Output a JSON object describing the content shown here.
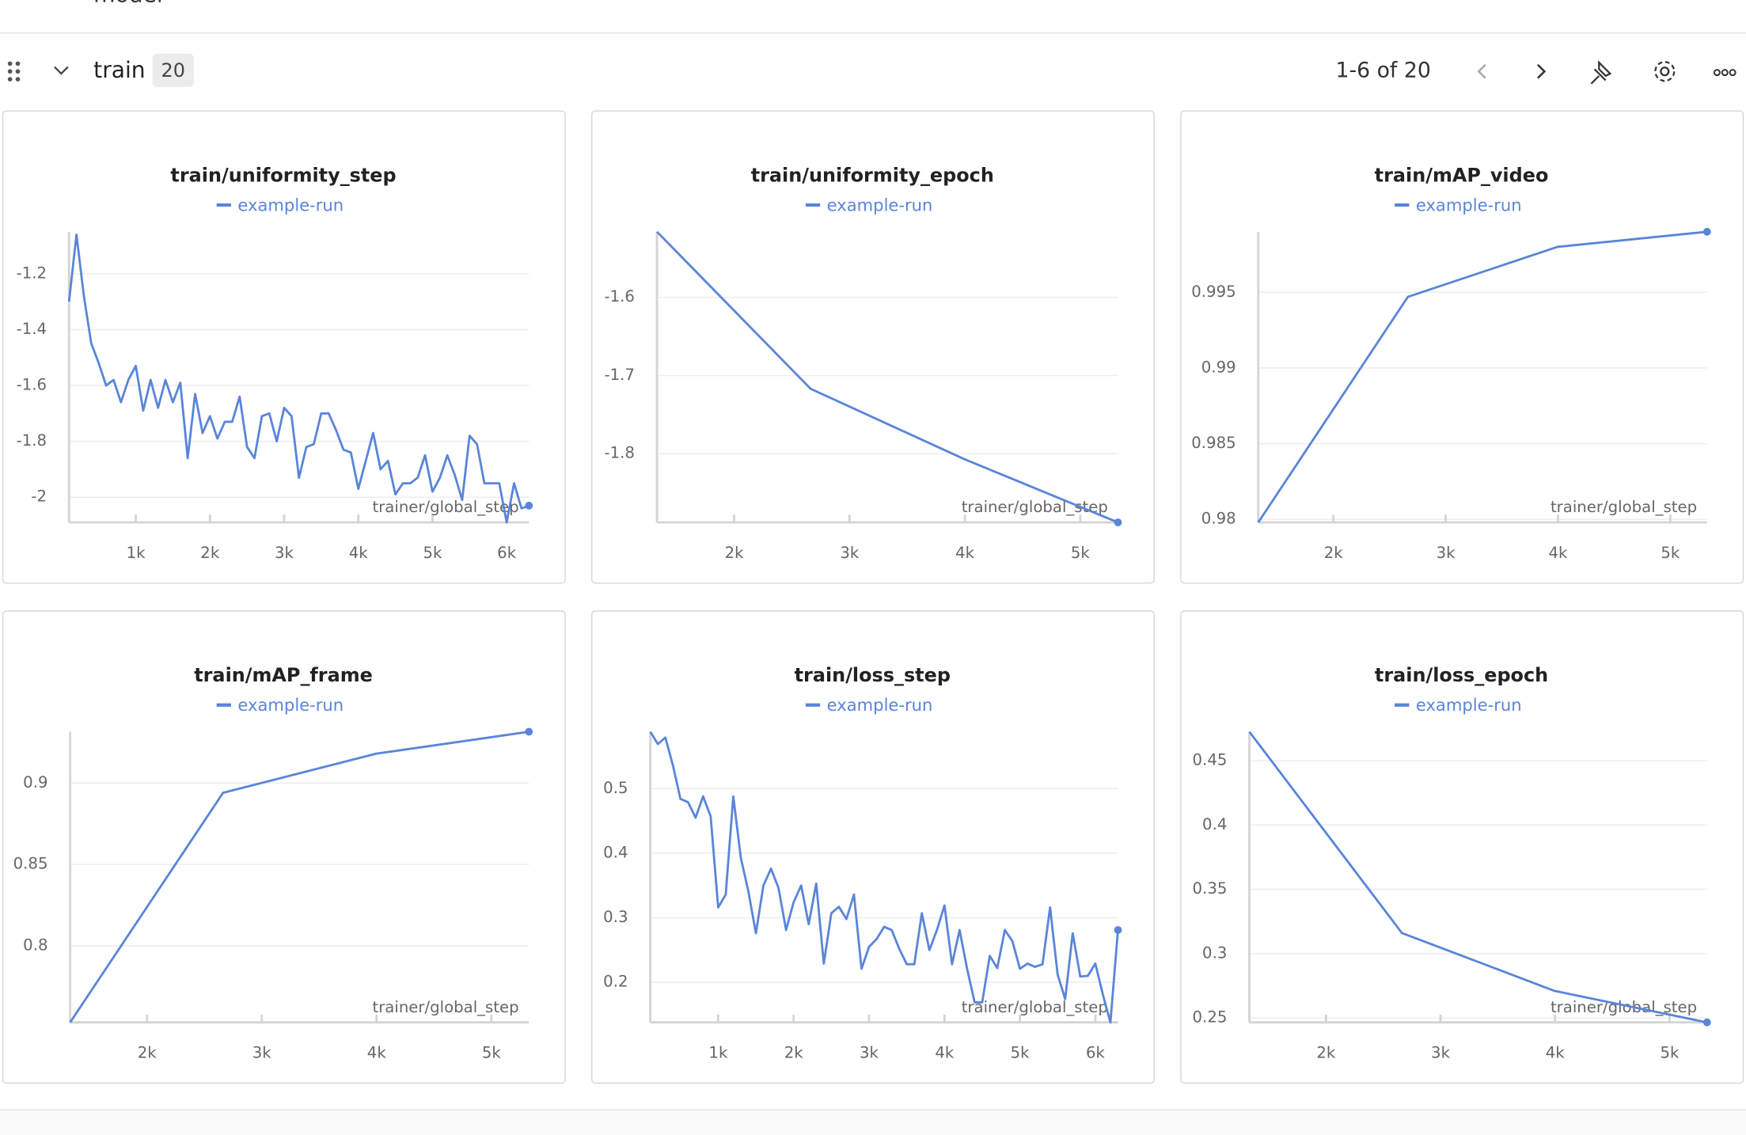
{
  "previous_section": {
    "title": "model"
  },
  "header": {
    "title": "train",
    "count": 20,
    "pagination": "1-6 of 20"
  },
  "chart_data": [
    {
      "type": "line",
      "title": "train/uniformity_step",
      "x_label": "trainer/global_step",
      "x": [
        100,
        200,
        300,
        400,
        500,
        600,
        700,
        800,
        900,
        1000,
        1100,
        1200,
        1300,
        1400,
        1500,
        1600,
        1700,
        1800,
        1900,
        2000,
        2100,
        2200,
        2300,
        2400,
        2500,
        2600,
        2700,
        2800,
        2900,
        3000,
        3100,
        3200,
        3300,
        3400,
        3500,
        3600,
        3700,
        3800,
        3900,
        4000,
        4100,
        4200,
        4300,
        4400,
        4500,
        4600,
        4700,
        4800,
        4900,
        5000,
        5100,
        5200,
        5300,
        5400,
        5500,
        5600,
        5700,
        5800,
        5900,
        6000,
        6100,
        6200,
        6300
      ],
      "series": [
        {
          "name": "example-run",
          "color": "#5a85d9",
          "values": [
            -1.3,
            -1.06,
            -1.28,
            -1.45,
            -1.52,
            -1.6,
            -1.58,
            -1.66,
            -1.58,
            -1.53,
            -1.69,
            -1.58,
            -1.68,
            -1.58,
            -1.66,
            -1.59,
            -1.86,
            -1.63,
            -1.77,
            -1.71,
            -1.79,
            -1.73,
            -1.73,
            -1.64,
            -1.82,
            -1.86,
            -1.71,
            -1.7,
            -1.8,
            -1.68,
            -1.71,
            -1.93,
            -1.82,
            -1.81,
            -1.7,
            -1.7,
            -1.76,
            -1.83,
            -1.84,
            -1.97,
            -1.87,
            -1.77,
            -1.9,
            -1.87,
            -1.99,
            -1.95,
            -1.95,
            -1.93,
            -1.85,
            -1.98,
            -1.93,
            -1.85,
            -1.92,
            -2.01,
            -1.78,
            -1.81,
            -1.95,
            -1.95,
            -1.95,
            -2.09,
            -1.95,
            -2.04,
            -2.03
          ]
        }
      ],
      "xlim": [
        100,
        6300
      ],
      "ylim": [
        -2.09,
        -1.05
      ],
      "xticks": [
        {
          "value": 1000,
          "label": "1k"
        },
        {
          "value": 2000,
          "label": "2k"
        },
        {
          "value": 3000,
          "label": "3k"
        },
        {
          "value": 4000,
          "label": "4k"
        },
        {
          "value": 5000,
          "label": "5k"
        },
        {
          "value": 6000,
          "label": "6k"
        }
      ],
      "yticks": [
        -1.2,
        -1.4,
        -1.6,
        -1.8,
        -2
      ],
      "grid": true
    },
    {
      "type": "line",
      "title": "train/uniformity_epoch",
      "x_label": "trainer/global_step",
      "x": [
        1331,
        2663,
        3995,
        5327
      ],
      "series": [
        {
          "name": "example-run",
          "color": "#5a85d9",
          "values": [
            -1.516,
            -1.717,
            -1.807,
            -1.888
          ]
        }
      ],
      "xlim": [
        1331,
        5327
      ],
      "ylim": [
        -1.888,
        -1.516
      ],
      "xticks": [
        {
          "value": 2000,
          "label": "2k"
        },
        {
          "value": 3000,
          "label": "3k"
        },
        {
          "value": 4000,
          "label": "4k"
        },
        {
          "value": 5000,
          "label": "5k"
        }
      ],
      "yticks": [
        -1.6,
        -1.7,
        -1.8
      ],
      "grid": true
    },
    {
      "type": "line",
      "title": "train/mAP_video",
      "x_label": "trainer/global_step",
      "x": [
        1331,
        2663,
        3995,
        5327
      ],
      "series": [
        {
          "name": "example-run",
          "color": "#5a85d9",
          "values": [
            0.9798,
            0.9947,
            0.998,
            0.999
          ]
        }
      ],
      "xlim": [
        1331,
        5327
      ],
      "ylim": [
        0.9798,
        0.999
      ],
      "xticks": [
        {
          "value": 2000,
          "label": "2k"
        },
        {
          "value": 3000,
          "label": "3k"
        },
        {
          "value": 4000,
          "label": "4k"
        },
        {
          "value": 5000,
          "label": "5k"
        }
      ],
      "yticks": [
        0.995,
        0.99,
        0.985,
        0.98
      ],
      "grid": true
    },
    {
      "type": "line",
      "title": "train/mAP_frame",
      "x_label": "trainer/global_step",
      "x": [
        1331,
        2663,
        3995,
        5327
      ],
      "series": [
        {
          "name": "example-run",
          "color": "#5a85d9",
          "values": [
            0.753,
            0.894,
            0.918,
            0.9315
          ]
        }
      ],
      "xlim": [
        1331,
        5327
      ],
      "ylim": [
        0.753,
        0.9315
      ],
      "xticks": [
        {
          "value": 2000,
          "label": "2k"
        },
        {
          "value": 3000,
          "label": "3k"
        },
        {
          "value": 4000,
          "label": "4k"
        },
        {
          "value": 5000,
          "label": "5k"
        }
      ],
      "yticks": [
        0.9,
        0.85,
        0.8
      ],
      "grid": true
    },
    {
      "type": "line",
      "title": "train/loss_step",
      "x_label": "trainer/global_step",
      "x": [
        100,
        200,
        300,
        400,
        500,
        600,
        700,
        800,
        900,
        1000,
        1100,
        1200,
        1300,
        1400,
        1500,
        1600,
        1700,
        1800,
        1900,
        2000,
        2100,
        2200,
        2300,
        2400,
        2500,
        2600,
        2700,
        2800,
        2900,
        3000,
        3100,
        3200,
        3300,
        3400,
        3500,
        3600,
        3700,
        3800,
        3900,
        4000,
        4100,
        4200,
        4300,
        4400,
        4500,
        4600,
        4700,
        4800,
        4900,
        5000,
        5100,
        5200,
        5300,
        5400,
        5500,
        5600,
        5700,
        5800,
        5900,
        6000,
        6100,
        6200,
        6300
      ],
      "series": [
        {
          "name": "example-run",
          "color": "#5a85d9",
          "values": [
            0.588,
            0.569,
            0.579,
            0.536,
            0.484,
            0.479,
            0.455,
            0.488,
            0.457,
            0.316,
            0.336,
            0.488,
            0.393,
            0.341,
            0.276,
            0.35,
            0.376,
            0.346,
            0.281,
            0.324,
            0.35,
            0.29,
            0.353,
            0.229,
            0.307,
            0.317,
            0.298,
            0.336,
            0.221,
            0.255,
            0.267,
            0.286,
            0.281,
            0.252,
            0.228,
            0.228,
            0.307,
            0.25,
            0.281,
            0.319,
            0.228,
            0.281,
            0.221,
            0.169,
            0.169,
            0.241,
            0.222,
            0.281,
            0.264,
            0.221,
            0.229,
            0.224,
            0.228,
            0.316,
            0.212,
            0.174,
            0.276,
            0.209,
            0.21,
            0.229,
            0.181,
            0.138,
            0.281
          ]
        }
      ],
      "xlim": [
        100,
        6300
      ],
      "ylim": [
        0.138,
        0.588
      ],
      "xticks": [
        {
          "value": 1000,
          "label": "1k"
        },
        {
          "value": 2000,
          "label": "2k"
        },
        {
          "value": 3000,
          "label": "3k"
        },
        {
          "value": 4000,
          "label": "4k"
        },
        {
          "value": 5000,
          "label": "5k"
        },
        {
          "value": 6000,
          "label": "6k"
        }
      ],
      "yticks": [
        0.5,
        0.4,
        0.3,
        0.2
      ],
      "grid": true
    },
    {
      "type": "line",
      "title": "train/loss_epoch",
      "x_label": "trainer/global_step",
      "x": [
        1331,
        2663,
        3995,
        5327
      ],
      "series": [
        {
          "name": "example-run",
          "color": "#5a85d9",
          "values": [
            0.4725,
            0.316,
            0.271,
            0.2465
          ]
        }
      ],
      "xlim": [
        1331,
        5327
      ],
      "ylim": [
        0.2465,
        0.4725
      ],
      "xticks": [
        {
          "value": 2000,
          "label": "2k"
        },
        {
          "value": 3000,
          "label": "3k"
        },
        {
          "value": 4000,
          "label": "4k"
        },
        {
          "value": 5000,
          "label": "5k"
        }
      ],
      "yticks": [
        0.45,
        0.4,
        0.35,
        0.3,
        0.25
      ],
      "grid": true
    }
  ]
}
